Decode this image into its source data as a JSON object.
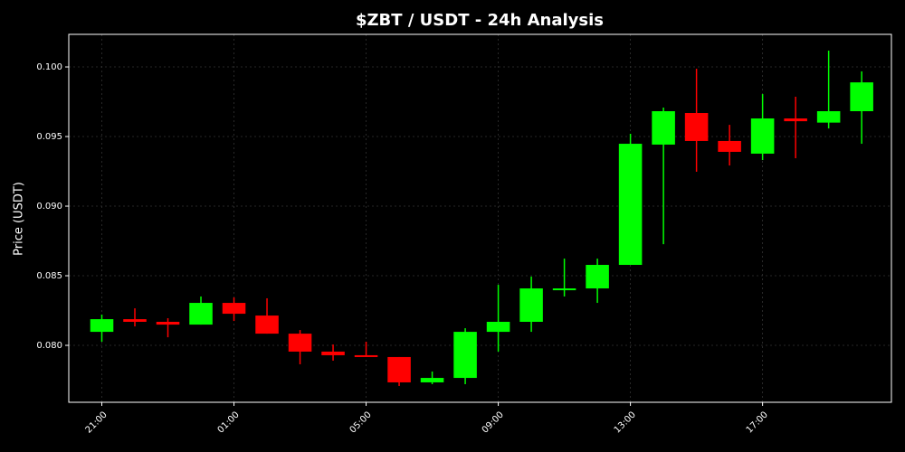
{
  "chart_data": {
    "type": "candlestick",
    "title": "$ZBT / USDT - 24h Analysis",
    "y_label": "Price (USDT)",
    "categories": [
      "21:00",
      null,
      null,
      null,
      "01:00",
      null,
      null,
      null,
      "05:00",
      null,
      null,
      null,
      "09:00",
      null,
      null,
      null,
      "13:00",
      null,
      null,
      null,
      "17:00",
      null,
      null,
      null
    ],
    "open": [
      0.08097,
      0.08188,
      0.08169,
      0.08149,
      0.08305,
      0.08214,
      0.08084,
      0.07955,
      0.07929,
      0.07916,
      0.07734,
      0.07766,
      0.08097,
      0.08169,
      0.08396,
      0.08409,
      0.08578,
      0.09442,
      0.09669,
      0.09468,
      0.09377,
      0.0963,
      0.096,
      0.09682
    ],
    "close": [
      0.08188,
      0.08169,
      0.08149,
      0.08305,
      0.08227,
      0.08084,
      0.07955,
      0.07929,
      0.07916,
      0.07734,
      0.07766,
      0.08097,
      0.08169,
      0.08409,
      0.08409,
      0.08578,
      0.09448,
      0.09682,
      0.09468,
      0.0939,
      0.0963,
      0.0961,
      0.09682,
      0.09889
    ],
    "high": [
      0.08221,
      0.08266,
      0.08195,
      0.08351,
      0.08344,
      0.08338,
      0.0811,
      0.08006,
      0.08026,
      0.07916,
      0.07812,
      0.08123,
      0.08435,
      0.08494,
      0.08623,
      0.08623,
      0.0952,
      0.09708,
      0.09987,
      0.09584,
      0.09805,
      0.09786,
      0.10117,
      0.09968
    ],
    "low": [
      0.08026,
      0.08136,
      0.08058,
      0.08149,
      0.08175,
      0.08084,
      0.07864,
      0.0789,
      0.07916,
      0.07708,
      0.07721,
      0.07721,
      0.07955,
      0.08097,
      0.08351,
      0.08305,
      0.08578,
      0.08727,
      0.09247,
      0.09292,
      0.09331,
      0.09344,
      0.09558,
      0.09448
    ],
    "up_color": "#00ff00",
    "down_color": "#ff0000",
    "ylim": [
      0.07591,
      0.10234
    ],
    "yticks": [
      {
        "value": 0.08,
        "label": "0.080"
      },
      {
        "value": 0.085,
        "label": "0.085"
      },
      {
        "value": 0.09,
        "label": "0.090"
      },
      {
        "value": 0.095,
        "label": "0.095"
      },
      {
        "value": 0.1,
        "label": "0.100"
      }
    ],
    "grid": true
  }
}
